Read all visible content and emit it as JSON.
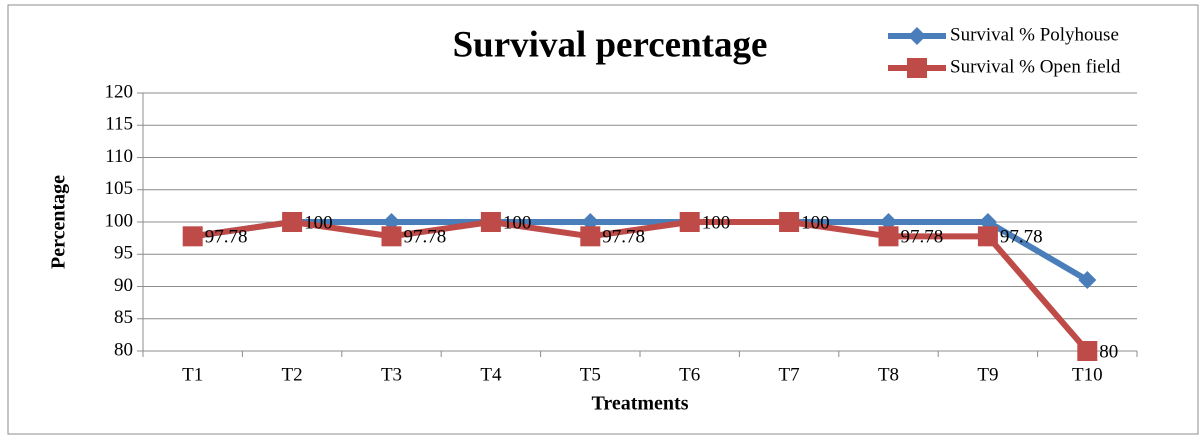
{
  "chart_data": {
    "type": "line",
    "title": "Survival percentage",
    "x_label": "Treatments",
    "y_label": "Percentage",
    "categories": [
      "T1",
      "T2",
      "T3",
      "T4",
      "T5",
      "T6",
      "T7",
      "T8",
      "T9",
      "T10"
    ],
    "series": [
      {
        "name": "Survival % Polyhouse",
        "color": "#4a7ebb",
        "marker": "diamond",
        "data_labels": false,
        "values": [
          97.78,
          100,
          100,
          100,
          100,
          100,
          100,
          100,
          100,
          91
        ]
      },
      {
        "name": "Survival % Open field",
        "color": "#be4b48",
        "marker": "square",
        "data_labels": true,
        "values": [
          97.78,
          100,
          97.78,
          100,
          97.78,
          100,
          100,
          97.78,
          97.78,
          80
        ]
      }
    ],
    "ylim": [
      80,
      120
    ],
    "yticks": [
      80,
      85,
      90,
      95,
      100,
      105,
      110,
      115,
      120
    ],
    "grid": true,
    "legend": "top-right"
  }
}
